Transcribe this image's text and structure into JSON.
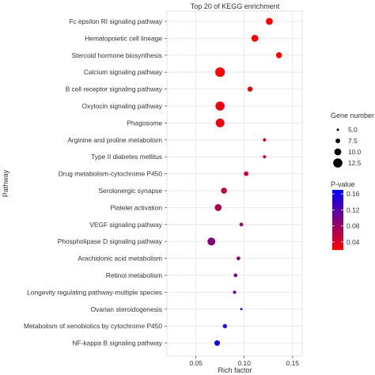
{
  "chart_data": {
    "type": "scatter",
    "title": "Top 20 of KEGG enrichment",
    "xlabel": "Rich factor",
    "ylabel": "Pathway",
    "xlim": [
      0.02,
      0.16
    ],
    "xticks": [
      0.05,
      0.1,
      0.15
    ],
    "xtick_labels": [
      "0.05",
      "0.10",
      "0.15"
    ],
    "grid": true,
    "legend_placement": "right",
    "size_legend": {
      "title": "Gene number",
      "values": [
        5.0,
        7.5,
        10.0,
        12.5
      ],
      "labels": [
        "5.0",
        "7.5",
        "10.0",
        "12.5"
      ]
    },
    "color_legend": {
      "title": "P-value",
      "range": [
        0.02,
        0.17
      ],
      "ticks": [
        0.16,
        0.12,
        0.08,
        0.04
      ],
      "tick_labels": [
        "0.16",
        "0.12",
        "0.08",
        "0.04"
      ],
      "low_color": "#ff0000",
      "mid_color": "#800080",
      "high_color": "#0000ff"
    },
    "points": [
      {
        "pathway": "Fc epsilon RI signaling pathway",
        "rich_factor": 0.126,
        "gene_number": 10.0,
        "p_value": 0.02
      },
      {
        "pathway": "Hematopoietic cell lineage",
        "rich_factor": 0.111,
        "gene_number": 10.0,
        "p_value": 0.02
      },
      {
        "pathway": "Stercoid hormone biosynthesis",
        "rich_factor": 0.136,
        "gene_number": 9.0,
        "p_value": 0.02
      },
      {
        "pathway": "Calcium signaling pathway",
        "rich_factor": 0.075,
        "gene_number": 13.0,
        "p_value": 0.02
      },
      {
        "pathway": "B cell receptor signaling pathway",
        "rich_factor": 0.106,
        "gene_number": 8.0,
        "p_value": 0.03
      },
      {
        "pathway": "Oxytocin signaling pathway",
        "rich_factor": 0.075,
        "gene_number": 12.5,
        "p_value": 0.03
      },
      {
        "pathway": "Phagosome",
        "rich_factor": 0.075,
        "gene_number": 12.0,
        "p_value": 0.03
      },
      {
        "pathway": "Arginine and proline metabolism",
        "rich_factor": 0.121,
        "gene_number": 6.0,
        "p_value": 0.04
      },
      {
        "pathway": "Type II diabetes mellitus",
        "rich_factor": 0.121,
        "gene_number": 6.0,
        "p_value": 0.05
      },
      {
        "pathway": "Drug metabolism-cytochrome P450",
        "rich_factor": 0.102,
        "gene_number": 7.5,
        "p_value": 0.05
      },
      {
        "pathway": "Serolonergic synapse",
        "rich_factor": 0.079,
        "gene_number": 9.0,
        "p_value": 0.06
      },
      {
        "pathway": "Platelet activation",
        "rich_factor": 0.073,
        "gene_number": 10.0,
        "p_value": 0.07
      },
      {
        "pathway": "VEGF signaling pathway",
        "rich_factor": 0.097,
        "gene_number": 6.5,
        "p_value": 0.08
      },
      {
        "pathway": "Phospholipase D signaling pathway",
        "rich_factor": 0.066,
        "gene_number": 11.0,
        "p_value": 0.09
      },
      {
        "pathway": "Arachidonic acid metabolism",
        "rich_factor": 0.094,
        "gene_number": 6.5,
        "p_value": 0.09
      },
      {
        "pathway": "Retinol metabolism",
        "rich_factor": 0.091,
        "gene_number": 6.5,
        "p_value": 0.1
      },
      {
        "pathway": "Longevity regulating pathway-multiple species",
        "rich_factor": 0.09,
        "gene_number": 6.0,
        "p_value": 0.11
      },
      {
        "pathway": "Ovarian steroidogenesis",
        "rich_factor": 0.097,
        "gene_number": 5.0,
        "p_value": 0.13
      },
      {
        "pathway": "Metabolism of xenobiotics by cytochrome P450",
        "rich_factor": 0.08,
        "gene_number": 7.0,
        "p_value": 0.15
      },
      {
        "pathway": "NF-kappa B signaling pathway",
        "rich_factor": 0.072,
        "gene_number": 8.5,
        "p_value": 0.16
      }
    ]
  }
}
